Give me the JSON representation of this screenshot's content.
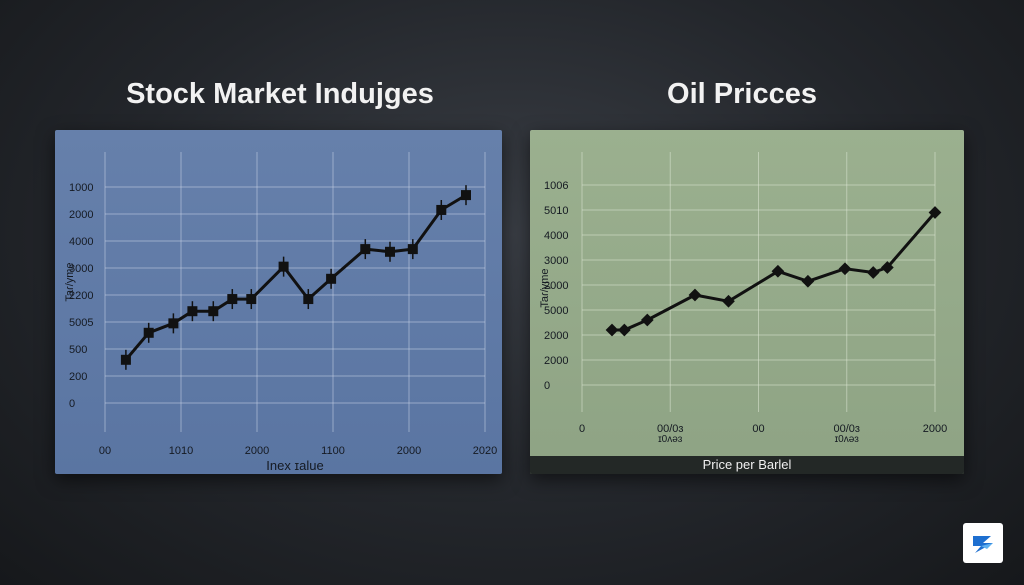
{
  "chart_data": [
    {
      "type": "line",
      "title": "Stock Market Indujges",
      "xlabel": "Inex ɪalue",
      "ylabel": "Taɾ/yme",
      "x_tick_labels": [
        "00",
        "1010",
        "2000",
        "1100",
        "2000",
        "2020"
      ],
      "y_tick_labels": [
        "1000",
        "2000",
        "4000",
        "3000",
        "2200",
        "5005",
        "500",
        "200",
        "0"
      ],
      "y_tick_positions": [
        9,
        8,
        7,
        6,
        5,
        4,
        3,
        2,
        1
      ],
      "xlim": [
        0,
        100
      ],
      "ylim": [
        0,
        10
      ],
      "grid": true,
      "series": [
        {
          "color": "#111111",
          "x": [
            5.5,
            11.5,
            18,
            23,
            28.5,
            33.5,
            38.5,
            47,
            53.5,
            59.5,
            68.5,
            75,
            81,
            88.5,
            95
          ],
          "y": [
            2.6,
            3.6,
            3.95,
            4.4,
            4.4,
            4.85,
            4.85,
            6.05,
            4.85,
            5.6,
            6.7,
            6.6,
            6.7,
            8.15,
            8.7
          ]
        }
      ],
      "colors": {
        "panel": "#6680ab",
        "grid": "#c8d2e6"
      }
    },
    {
      "type": "line",
      "title": "Oil Pricces",
      "xlabel": "Price per Barlel",
      "ylabel": "Taɾ/yme",
      "x_tick_labels": [
        "0",
        "00/0ɜ",
        "00",
        "00/0ɜ",
        "2000"
      ],
      "x_tick_sublabels": [
        "",
        "ɪ0ʌəɜ",
        "",
        "ɪ0ʌəɜ",
        ""
      ],
      "y_tick_labels": [
        "1006",
        "5010",
        "4000",
        "3000",
        "2000",
        "5000",
        "2000",
        "2000",
        "0"
      ],
      "y_tick_positions": [
        9,
        8,
        7,
        6,
        5,
        4,
        3,
        2,
        1
      ],
      "xlim": [
        0,
        100
      ],
      "ylim": [
        0,
        10
      ],
      "grid": true,
      "series": [
        {
          "color": "#111111",
          "x": [
            8.5,
            12,
            18.5,
            32,
            41.5,
            55.5,
            64,
            74.5,
            82.5,
            86.5,
            100
          ],
          "y": [
            3.2,
            3.2,
            3.6,
            4.6,
            4.35,
            5.55,
            5.15,
            5.65,
            5.5,
            5.7,
            7.9
          ]
        }
      ],
      "colors": {
        "panel": "#9bb08f",
        "grid": "#dce6d3",
        "caption_bar": "#232826"
      }
    }
  ]
}
